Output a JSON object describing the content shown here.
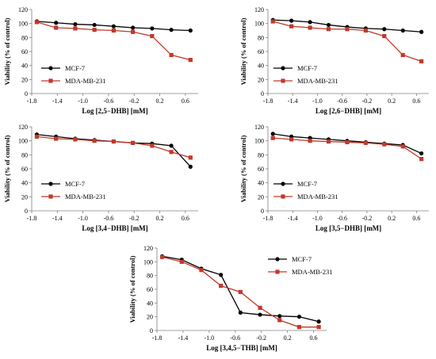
{
  "colors": {
    "mcf7": "#000000",
    "mda": "#c0392b",
    "axis": "#808080"
  },
  "chart_data": [
    {
      "type": "line",
      "xlabel": "Log [2,5−DHB] [mM]",
      "ylabel": "Viability (% of control)",
      "xlim": [
        -1.8,
        0.8
      ],
      "ylim": [
        0,
        120
      ],
      "xticks": [
        "-1.8",
        "-1.4",
        "-1.0",
        "-0.6",
        "-0.2",
        "0.2",
        "0.6"
      ],
      "yticks": [
        "0",
        "20",
        "40",
        "60",
        "80",
        "100",
        "120"
      ],
      "legend_position": "bottom-left",
      "series": [
        {
          "name": "MCF-7",
          "x": [
            -1.72,
            -1.42,
            -1.12,
            -0.82,
            -0.52,
            -0.22,
            0.08,
            0.38,
            0.68
          ],
          "y": [
            103,
            101,
            99,
            98,
            96,
            94,
            93,
            91,
            90
          ]
        },
        {
          "name": "MDA-MB-231",
          "x": [
            -1.72,
            -1.42,
            -1.12,
            -0.82,
            -0.52,
            -0.22,
            0.08,
            0.38,
            0.68
          ],
          "y": [
            102,
            94,
            93,
            91,
            90,
            88,
            82,
            55,
            48
          ]
        }
      ]
    },
    {
      "type": "line",
      "xlabel": "Log [2,6−DHB] [mM]",
      "ylabel": "Viability (% of control)",
      "xlim": [
        -1.8,
        0.8
      ],
      "ylim": [
        0,
        120
      ],
      "xticks": [
        "-1.8",
        "-1.4",
        "-1.0",
        "-0.6",
        "-0.2",
        "0.2",
        "0.6"
      ],
      "yticks": [
        "0",
        "20",
        "40",
        "60",
        "80",
        "100",
        "120"
      ],
      "legend_position": "bottom-left",
      "series": [
        {
          "name": "MCF-7",
          "x": [
            -1.72,
            -1.42,
            -1.12,
            -0.82,
            -0.52,
            -0.22,
            0.08,
            0.38,
            0.68
          ],
          "y": [
            105,
            104,
            102,
            98,
            95,
            93,
            92,
            90,
            88
          ]
        },
        {
          "name": "MDA-MB-231",
          "x": [
            -1.72,
            -1.42,
            -1.12,
            -0.82,
            -0.52,
            -0.22,
            0.08,
            0.38,
            0.68
          ],
          "y": [
            103,
            96,
            94,
            92,
            92,
            90,
            82,
            55,
            46
          ]
        }
      ]
    },
    {
      "type": "line",
      "xlabel": "Log [3,4−DHB] [mM]",
      "ylabel": "Viability (% of control)",
      "xlim": [
        -1.8,
        0.8
      ],
      "ylim": [
        0,
        120
      ],
      "xticks": [
        "-1.8",
        "-1.4",
        "-1.0",
        "-0.6",
        "-0.2",
        "0.2",
        "0.6"
      ],
      "yticks": [
        "0",
        "20",
        "40",
        "60",
        "80",
        "100",
        "120"
      ],
      "legend_position": "bottom-left",
      "series": [
        {
          "name": "MCF-7",
          "x": [
            -1.72,
            -1.42,
            -1.12,
            -0.82,
            -0.52,
            -0.22,
            0.08,
            0.38,
            0.68
          ],
          "y": [
            109,
            106,
            103,
            101,
            99,
            97,
            96,
            93,
            63
          ]
        },
        {
          "name": "MDA-MB-231",
          "x": [
            -1.72,
            -1.42,
            -1.12,
            -0.82,
            -0.52,
            -0.22,
            0.08,
            0.38,
            0.68
          ],
          "y": [
            106,
            103,
            102,
            100,
            99,
            97,
            93,
            84,
            76
          ]
        }
      ]
    },
    {
      "type": "line",
      "xlabel": "Log [3,5−DHB] [mM]",
      "ylabel": "Viability (% of control)",
      "xlim": [
        -1.8,
        0.8
      ],
      "ylim": [
        0,
        120
      ],
      "xticks": [
        "-1.8",
        "-1.4",
        "-1.0",
        "-0.6",
        "-0.2",
        "0.2",
        "0.6"
      ],
      "yticks": [
        "0",
        "20",
        "40",
        "60",
        "80",
        "100",
        "120"
      ],
      "legend_position": "bottom-left",
      "series": [
        {
          "name": "MCF-7",
          "x": [
            -1.72,
            -1.42,
            -1.12,
            -0.82,
            -0.52,
            -0.22,
            0.08,
            0.38,
            0.68
          ],
          "y": [
            110,
            106,
            104,
            102,
            100,
            98,
            96,
            94,
            82
          ]
        },
        {
          "name": "MDA-MB-231",
          "x": [
            -1.72,
            -1.42,
            -1.12,
            -0.82,
            -0.52,
            -0.22,
            0.08,
            0.38,
            0.68
          ],
          "y": [
            104,
            102,
            100,
            99,
            98,
            97,
            95,
            92,
            74
          ]
        }
      ]
    },
    {
      "type": "line",
      "xlabel": "Log [3,4,5−THB] [mM]",
      "ylabel": "Viability (% of control)",
      "xlim": [
        -1.8,
        0.8
      ],
      "ylim": [
        0,
        120
      ],
      "xticks": [
        "-1.8",
        "-1.4",
        "-1.0",
        "-0.6",
        "-0.2",
        "0.2",
        "0.6"
      ],
      "yticks": [
        "0",
        "20",
        "40",
        "60",
        "80",
        "100",
        "120"
      ],
      "legend_position": "top-right",
      "series": [
        {
          "name": "MCF-7",
          "x": [
            -1.72,
            -1.42,
            -1.12,
            -0.82,
            -0.52,
            -0.22,
            0.08,
            0.38,
            0.68
          ],
          "y": [
            108,
            103,
            90,
            81,
            26,
            23,
            21,
            20,
            13
          ]
        },
        {
          "name": "MDA-MB-231",
          "x": [
            -1.72,
            -1.42,
            -1.12,
            -0.82,
            -0.52,
            -0.22,
            0.08,
            0.38,
            0.68
          ],
          "y": [
            107,
            100,
            88,
            65,
            56,
            33,
            15,
            5,
            5
          ]
        }
      ]
    }
  ]
}
